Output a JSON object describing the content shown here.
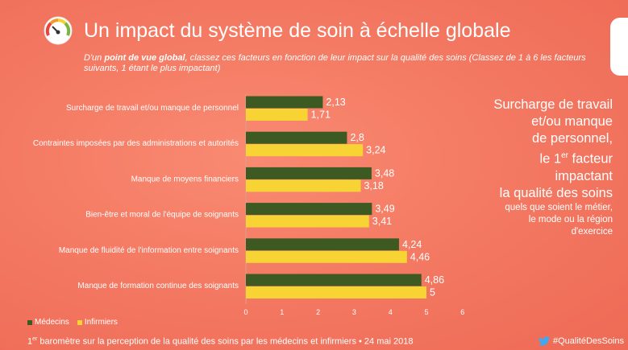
{
  "header": {
    "title": "Un impact du système de soin à échelle globale",
    "subtitle_prefix": "D'un ",
    "subtitle_bold": "point de vue global",
    "subtitle_rest": ", classez ces facteurs en fonction de leur impact sur la qualité des soins (Classez de 1 à 6 les facteurs suivants, 1 étant le plus impactant)"
  },
  "gauge": {
    "icon": "speedometer-icon"
  },
  "chart_data": {
    "type": "bar",
    "orientation": "horizontal",
    "categories": [
      "Surcharge de travail et/ou manque de personnel",
      "Contraintes imposées par des administrations et autorités",
      "Manque de moyens financiers",
      "Bien-être et moral de l'équipe de soignants",
      "Manque de fluidité de l'information entre soignants",
      "Manque de formation continue des soignants"
    ],
    "series": [
      {
        "name": "Médecins",
        "color": "#3d5a22",
        "values": [
          2.13,
          2.8,
          3.48,
          3.49,
          4.24,
          4.86
        ],
        "labels": [
          "2,13",
          "2,8",
          "3,48",
          "3,49",
          "4,24",
          "4,86"
        ]
      },
      {
        "name": "Infirmiers",
        "color": "#f8d334",
        "values": [
          1.71,
          3.24,
          3.18,
          3.41,
          4.46,
          5
        ],
        "labels": [
          "1,71",
          "3,24",
          "3,18",
          "3,41",
          "4,46",
          "5"
        ]
      }
    ],
    "xlim": [
      0,
      6
    ],
    "xticks": [
      "0",
      "1",
      "2",
      "3",
      "4",
      "5",
      "6"
    ],
    "grid": false,
    "legend": "bottom-left"
  },
  "side_note": {
    "big_lines": [
      "Surcharge de travail",
      "et/ou manque",
      "de personnel,"
    ],
    "rank_prefix": "le 1",
    "rank_sup": "er",
    "rank_suffix": " facteur",
    "big_lines2": [
      "impactant",
      "la qualité des soins"
    ],
    "small_lines": [
      "quels que soient le métier,",
      "le mode ou la région",
      "d'exercice"
    ]
  },
  "footer": {
    "num": "1",
    "sup": "er",
    "text": " baromètre sur la perception de la qualité des soins par les médecins et infirmiers • 24 mai 2018",
    "hashtag": "#QualitéDesSoins",
    "twitter_icon": "twitter-bird-icon"
  }
}
